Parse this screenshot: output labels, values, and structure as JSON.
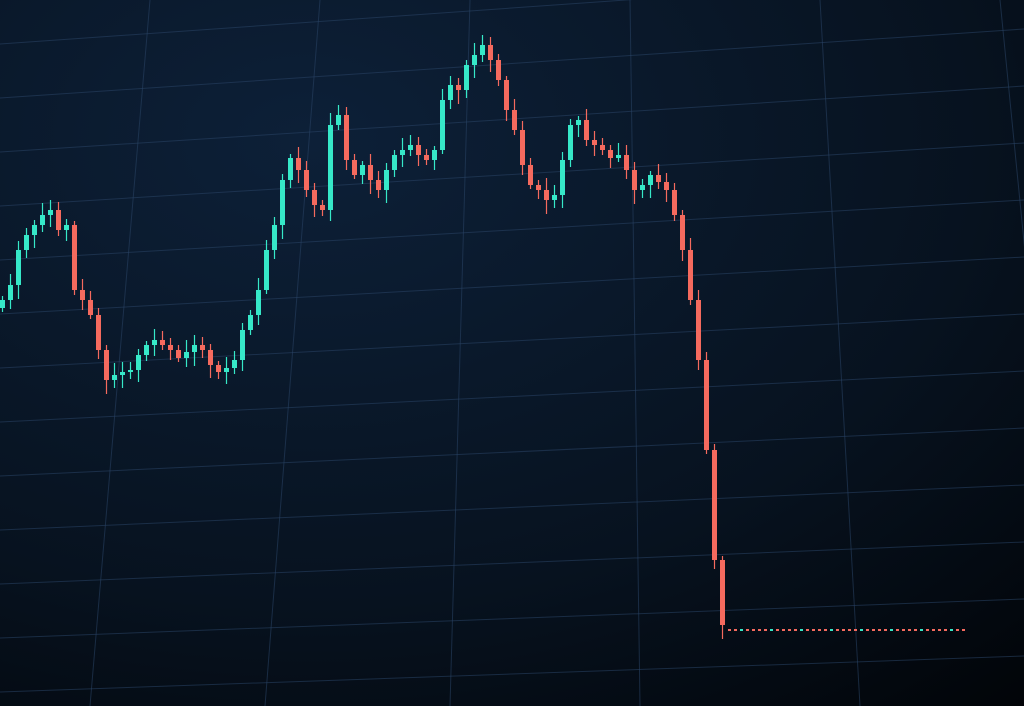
{
  "chart_data": {
    "type": "candlestick",
    "title": "",
    "xlabel": "",
    "ylabel": "",
    "grid": true,
    "colors": {
      "up": "#36e8c8",
      "down": "#f56a5e",
      "background": "#0a1a30",
      "grid": "#2a4466"
    },
    "closes": [
      100,
      103.75,
      112.5,
      116.25,
      118.75,
      121.25,
      122.5,
      117.5,
      118.75,
      102.5,
      100,
      96.25,
      87.5,
      80,
      81.25,
      82,
      82.5,
      86.25,
      88.75,
      90,
      88.75,
      87.5,
      85.5,
      87,
      88.75,
      87.5,
      83.75,
      82,
      83,
      85,
      92.5,
      96.25,
      102.5,
      112.5,
      118.75,
      130,
      135.5,
      132.5,
      127.5,
      123.75,
      122.5,
      143.75,
      146.25,
      135,
      131.25,
      133.75,
      130,
      127.5,
      132.5,
      136.25,
      137.5,
      138.75,
      136.25,
      135,
      137.5,
      150,
      153.75,
      152.5,
      158.75,
      161.25,
      163.75,
      160,
      155,
      147.5,
      142.5,
      133.75,
      128.75,
      127.5,
      125,
      126.25,
      135,
      143.75,
      145,
      140,
      138.75,
      137.5,
      135.5,
      136.25,
      132.5,
      127.5,
      128.75,
      131.25,
      129.5,
      127.5,
      121.25,
      112.5,
      100,
      85,
      62.5,
      35,
      18.75
    ],
    "flat_level": 17.5,
    "flat_count": 40
  }
}
